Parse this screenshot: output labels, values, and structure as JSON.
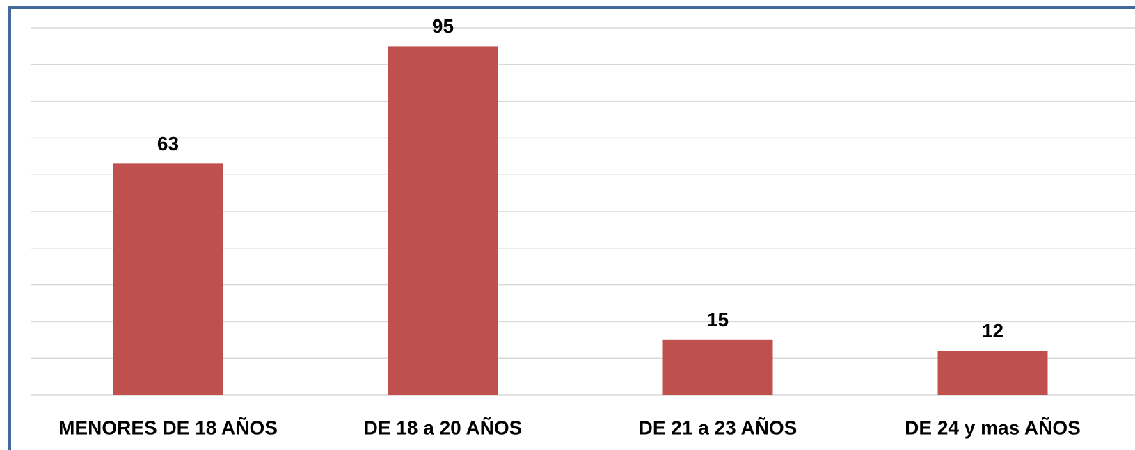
{
  "chart_data": {
    "type": "bar",
    "categories": [
      "MENORES DE 18 AÑOS",
      "DE 18 a 20 AÑOS",
      "DE 21 a 23 AÑOS",
      "DE 24 y mas AÑOS"
    ],
    "values": [
      63,
      95,
      15,
      12
    ],
    "color": "#c0504d",
    "ylim": [
      0,
      100
    ],
    "yticks": [
      0,
      10,
      20,
      30,
      40,
      50,
      60,
      70,
      80,
      90,
      100
    ],
    "grid": true
  }
}
